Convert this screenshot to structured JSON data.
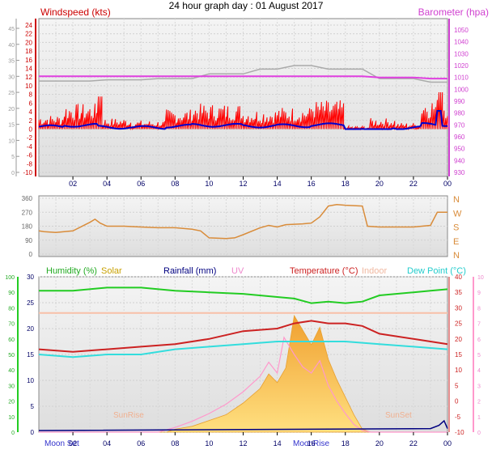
{
  "title": "24 hour graph day : 01 August 2017",
  "time_ticks": [
    "02",
    "04",
    "06",
    "08",
    "10",
    "12",
    "14",
    "16",
    "18",
    "20",
    "22",
    "00"
  ],
  "colors": {
    "wind": "#ff0000",
    "wind_avg": "#0000cc",
    "baro": "#e040e0",
    "baro_grey": "#aaaaaa",
    "dir": "#d98c3a",
    "humidity": "#22cc22",
    "solar": "#e8b040",
    "rain": "#000080",
    "uv": "#ff99cc",
    "temp": "#cc2222",
    "indoor": "#f8c0a8",
    "dew": "#33dddd",
    "axis": "#000000"
  },
  "labels": {
    "windspeed": "Windspeed (kts)",
    "barometer": "Barometer (hpa)",
    "humidity": "Humidity (%)",
    "solar": "Solar",
    "rainfall": "Rainfall (mm)",
    "uv": "UV",
    "temperature": "Temperature (°C)",
    "indoor": "Indoor",
    "dew_point": "Dew Point (°C)",
    "sunrise": "SunRise",
    "sunset": "SunSet",
    "moonset": "Moon Set",
    "moonrise": "MoonRise"
  },
  "chart_data": [
    {
      "type": "line",
      "name": "wind-barometer",
      "x_hours": [
        0,
        24
      ],
      "left_axis_outer": {
        "ticks": [
          0,
          5,
          10,
          15,
          20,
          25,
          30,
          35,
          40,
          45
        ]
      },
      "left_axis_inner": {
        "ticks": [
          24,
          22,
          20,
          18,
          16,
          14,
          12,
          10,
          8,
          6,
          4,
          2,
          0,
          -2,
          -4,
          -6,
          -8,
          -10
        ]
      },
      "right_axis": {
        "ticks": [
          1050,
          1040,
          1030,
          1020,
          1010,
          1000,
          990,
          980,
          970,
          960,
          950,
          940,
          930
        ]
      },
      "series": [
        {
          "name": "Windspeed (kts)",
          "role": "gust"
        },
        {
          "name": "Barometer (hpa)",
          "role": "baro",
          "values_hpa_hourly": [
            1011,
            1011,
            1011,
            1011,
            1011,
            1011,
            1011,
            1011,
            1011,
            1011,
            1011,
            1011,
            1011,
            1011,
            1011,
            1011,
            1011,
            1011,
            1011,
            1011,
            1010,
            1010,
            1010,
            1009,
            1009
          ]
        }
      ]
    },
    {
      "type": "line",
      "name": "wind-direction",
      "y_ticks": [
        360,
        270,
        180,
        90,
        0
      ],
      "right_labels": [
        "N",
        "W",
        "S",
        "E",
        "N"
      ],
      "points": [
        [
          0,
          150
        ],
        [
          0.3,
          145
        ],
        [
          1,
          140
        ],
        [
          2,
          150
        ],
        [
          3,
          205
        ],
        [
          3.3,
          225
        ],
        [
          3.6,
          200
        ],
        [
          4,
          180
        ],
        [
          5,
          180
        ],
        [
          6,
          175
        ],
        [
          7,
          170
        ],
        [
          8,
          170
        ],
        [
          9,
          160
        ],
        [
          9.5,
          150
        ],
        [
          10,
          105
        ],
        [
          11,
          100
        ],
        [
          11.5,
          105
        ],
        [
          12,
          125
        ],
        [
          13,
          170
        ],
        [
          13.5,
          185
        ],
        [
          14,
          175
        ],
        [
          14.5,
          190
        ],
        [
          15.5,
          195
        ],
        [
          16,
          200
        ],
        [
          16.5,
          240
        ],
        [
          17,
          310
        ],
        [
          17.5,
          320
        ],
        [
          18,
          315
        ],
        [
          19,
          310
        ],
        [
          19.3,
          180
        ],
        [
          20,
          175
        ],
        [
          21,
          175
        ],
        [
          22,
          175
        ],
        [
          23,
          185
        ],
        [
          23.4,
          270
        ],
        [
          24,
          270
        ]
      ]
    },
    {
      "type": "line",
      "name": "temperature-humidity",
      "left_humidity_ticks": [
        0,
        10,
        20,
        30,
        40,
        50,
        60,
        70,
        80,
        90,
        100
      ],
      "left_temp_ticks": [
        0,
        5,
        10,
        15,
        20,
        25,
        30
      ],
      "right_temp_ticks": [
        40,
        35,
        30,
        25,
        20,
        15,
        10,
        5,
        0,
        -5,
        -10
      ],
      "right_uv_ticks": [
        10,
        9,
        8,
        7,
        6,
        5,
        4,
        3,
        2,
        1,
        0
      ],
      "series": [
        {
          "name": "Humidity (%)",
          "points": [
            [
              0,
              91
            ],
            [
              2,
              91
            ],
            [
              4,
              93
            ],
            [
              6,
              93
            ],
            [
              8,
              91
            ],
            [
              10,
              90
            ],
            [
              12,
              89
            ],
            [
              14,
              87
            ],
            [
              15,
              86
            ],
            [
              16,
              83
            ],
            [
              17,
              84
            ],
            [
              18,
              83
            ],
            [
              19,
              84
            ],
            [
              20,
              88
            ],
            [
              22,
              90
            ],
            [
              23,
              91
            ],
            [
              24,
              92
            ]
          ]
        },
        {
          "name": "Temperature (°C)",
          "points": [
            [
              0,
              16
            ],
            [
              2,
              15.5
            ],
            [
              4,
              16
            ],
            [
              6,
              16.5
            ],
            [
              8,
              17
            ],
            [
              10,
              18
            ],
            [
              12,
              19.5
            ],
            [
              14,
              20
            ],
            [
              15,
              21
            ],
            [
              16,
              21.5
            ],
            [
              17,
              21
            ],
            [
              18,
              21
            ],
            [
              19,
              20.5
            ],
            [
              20,
              19
            ],
            [
              22,
              18
            ],
            [
              24,
              17
            ]
          ]
        },
        {
          "name": "Dew Point (°C)",
          "points": [
            [
              0,
              15
            ],
            [
              2,
              14.5
            ],
            [
              4,
              15
            ],
            [
              6,
              15
            ],
            [
              8,
              16
            ],
            [
              10,
              16.5
            ],
            [
              12,
              17
            ],
            [
              14,
              17.5
            ],
            [
              16,
              17.5
            ],
            [
              18,
              17.5
            ],
            [
              20,
              17
            ],
            [
              22,
              16.5
            ],
            [
              24,
              16
            ]
          ]
        },
        {
          "name": "Indoor",
          "points": [
            [
              0,
              23
            ],
            [
              6,
              23
            ],
            [
              12,
              23
            ],
            [
              18,
              23
            ],
            [
              24,
              23
            ]
          ]
        },
        {
          "name": "Solar",
          "points": [
            [
              0,
              0
            ],
            [
              6,
              0
            ],
            [
              7.5,
              0
            ],
            [
              8,
              1
            ],
            [
              9,
              2
            ],
            [
              10,
              4
            ],
            [
              11,
              6
            ],
            [
              12,
              10
            ],
            [
              13,
              15
            ],
            [
              13.5,
              20
            ],
            [
              14,
              17
            ],
            [
              14.5,
              22
            ],
            [
              15,
              40
            ],
            [
              15.5,
              35
            ],
            [
              16,
              30
            ],
            [
              16.5,
              36
            ],
            [
              17,
              25
            ],
            [
              17.5,
              18
            ],
            [
              18,
              12
            ],
            [
              18.5,
              6
            ],
            [
              19,
              1
            ],
            [
              19.5,
              0
            ],
            [
              24,
              0
            ]
          ]
        },
        {
          "name": "UV",
          "points": [
            [
              0,
              0
            ],
            [
              7,
              0
            ],
            [
              8,
              0.3
            ],
            [
              9,
              0.7
            ],
            [
              10,
              1.2
            ],
            [
              11,
              1.8
            ],
            [
              12,
              2.6
            ],
            [
              13,
              3.6
            ],
            [
              13.5,
              4.5
            ],
            [
              14,
              3.8
            ],
            [
              14.4,
              6.1
            ],
            [
              15,
              5.0
            ],
            [
              15.5,
              4.2
            ],
            [
              16,
              3.8
            ],
            [
              16.5,
              4.6
            ],
            [
              17,
              3.0
            ],
            [
              17.5,
              2.0
            ],
            [
              18,
              1.2
            ],
            [
              18.5,
              0.5
            ],
            [
              19,
              0.1
            ],
            [
              19.5,
              0
            ],
            [
              24,
              0
            ]
          ]
        },
        {
          "name": "Rainfall (mm)",
          "points": [
            [
              0,
              0
            ],
            [
              23,
              0.3
            ],
            [
              23.5,
              0.8
            ],
            [
              23.8,
              1.5
            ],
            [
              24,
              0.3
            ]
          ]
        }
      ]
    }
  ]
}
